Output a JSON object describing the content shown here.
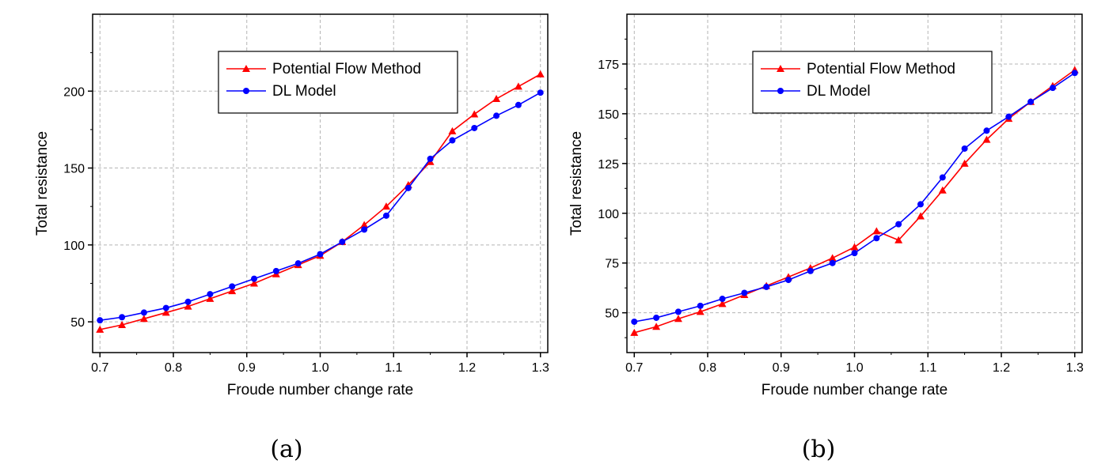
{
  "chart_data": [
    {
      "type": "line",
      "caption": "(a)",
      "xlabel": "Froude number change rate",
      "ylabel": "Total resistance",
      "xlim": [
        0.69,
        1.31
      ],
      "ylim": [
        30,
        250
      ],
      "xticks": [
        0.7,
        0.8,
        0.9,
        1.0,
        1.1,
        1.2,
        1.3
      ],
      "xtick_labels": [
        "0.7",
        "0.8",
        "0.9",
        "1.0",
        "1.1",
        "1.2",
        "1.3"
      ],
      "yticks": [
        50,
        100,
        150,
        200
      ],
      "ytick_labels": [
        "50",
        "100",
        "150",
        "200"
      ],
      "grid": true,
      "legend_position": "top-right",
      "x": [
        0.7,
        0.73,
        0.76,
        0.79,
        0.82,
        0.85,
        0.88,
        0.91,
        0.94,
        0.97,
        1.0,
        1.03,
        1.06,
        1.09,
        1.12,
        1.15,
        1.18,
        1.21,
        1.24,
        1.27,
        1.3
      ],
      "series": [
        {
          "name": "Potential Flow Method",
          "color": "#ff0000",
          "marker": "triangle",
          "values": [
            45,
            48,
            52,
            56,
            60,
            65,
            70,
            75,
            81,
            87,
            93,
            102,
            113,
            125,
            139,
            154,
            174,
            185,
            195,
            203,
            211
          ]
        },
        {
          "name": "DL Model",
          "color": "#0000ff",
          "marker": "circle",
          "values": [
            51,
            53,
            56,
            59,
            63,
            68,
            73,
            78,
            83,
            88,
            94,
            102,
            110,
            119,
            137,
            156,
            168,
            176,
            184,
            191,
            199
          ]
        }
      ]
    },
    {
      "type": "line",
      "caption": "(b)",
      "xlabel": "Froude number change rate",
      "ylabel": "Total resistance",
      "xlim": [
        0.69,
        1.31
      ],
      "ylim": [
        30,
        200
      ],
      "xticks": [
        0.7,
        0.8,
        0.9,
        1.0,
        1.1,
        1.2,
        1.3
      ],
      "xtick_labels": [
        "0.7",
        "0.8",
        "0.9",
        "1.0",
        "1.1",
        "1.2",
        "1.3"
      ],
      "yticks": [
        50,
        75,
        100,
        125,
        150,
        175
      ],
      "ytick_labels": [
        "50",
        "75",
        "100",
        "125",
        "150",
        "175"
      ],
      "grid": true,
      "legend_position": "top-right",
      "x": [
        0.7,
        0.73,
        0.76,
        0.79,
        0.82,
        0.85,
        0.88,
        0.91,
        0.94,
        0.97,
        1.0,
        1.03,
        1.06,
        1.09,
        1.12,
        1.15,
        1.18,
        1.21,
        1.24,
        1.27,
        1.3
      ],
      "series": [
        {
          "name": "Potential Flow Method",
          "color": "#ff0000",
          "marker": "triangle",
          "values": [
            40,
            43,
            47,
            50.5,
            54.5,
            59,
            63.5,
            68,
            72.5,
            77.5,
            83,
            91,
            86.5,
            98.5,
            111.5,
            125,
            137,
            147.5,
            156,
            164,
            172
          ]
        },
        {
          "name": "DL Model",
          "color": "#0000ff",
          "marker": "circle",
          "values": [
            45.5,
            47.5,
            50.5,
            53.5,
            57,
            60,
            63,
            66.5,
            71,
            75,
            80,
            87.5,
            94.5,
            104.5,
            118,
            132.5,
            141.5,
            148.5,
            156,
            163,
            170.5
          ]
        }
      ]
    }
  ]
}
